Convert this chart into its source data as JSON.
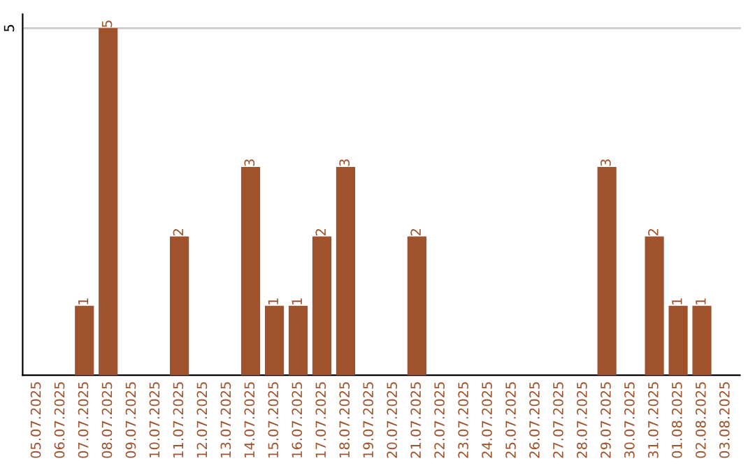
{
  "chart_data": {
    "type": "bar",
    "categories": [
      "05.07.2025",
      "06.07.2025",
      "07.07.2025",
      "08.07.2025",
      "09.07.2025",
      "10.07.2025",
      "11.07.2025",
      "12.07.2025",
      "13.07.2025",
      "14.07.2025",
      "15.07.2025",
      "16.07.2025",
      "17.07.2025",
      "18.07.2025",
      "19.07.2025",
      "20.07.2025",
      "21.07.2025",
      "22.07.2025",
      "23.07.2025",
      "24.07.2025",
      "25.07.2025",
      "26.07.2025",
      "27.07.2025",
      "28.07.2025",
      "29.07.2025",
      "30.07.2025",
      "31.07.2025",
      "01.08.2025",
      "02.08.2025",
      "03.08.2025"
    ],
    "values": [
      0,
      0,
      1,
      5,
      0,
      0,
      2,
      0,
      0,
      3,
      1,
      1,
      2,
      3,
      0,
      0,
      2,
      0,
      0,
      0,
      0,
      0,
      0,
      0,
      3,
      0,
      2,
      1,
      1,
      0
    ],
    "color": "#a0522d",
    "value_labels": [
      null,
      null,
      "1",
      "5",
      null,
      null,
      "2",
      null,
      null,
      "3",
      "1",
      "1",
      "2",
      "3",
      null,
      null,
      "2",
      null,
      null,
      null,
      null,
      null,
      null,
      null,
      "3",
      null,
      "2",
      "1",
      "1",
      null
    ],
    "ylim": [
      0,
      5.2
    ],
    "yticks": [
      5
    ],
    "grid": "y"
  }
}
